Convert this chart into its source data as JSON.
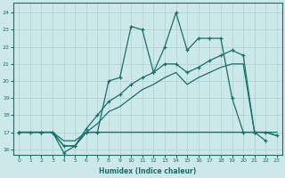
{
  "xlabel": "Humidex (Indice chaleur)",
  "bg_color": "#cce8e8",
  "grid_color": "#aad0d0",
  "line_color": "#1a6e6e",
  "xlim": [
    -0.5,
    23.5
  ],
  "ylim": [
    15.7,
    24.6
  ],
  "xticks": [
    0,
    1,
    2,
    3,
    4,
    5,
    6,
    7,
    8,
    9,
    10,
    11,
    12,
    13,
    14,
    15,
    16,
    17,
    18,
    19,
    20,
    21,
    22,
    23
  ],
  "yticks": [
    16,
    17,
    18,
    19,
    20,
    21,
    22,
    23,
    24
  ],
  "line1_x": [
    0,
    2,
    3,
    4,
    5,
    6,
    7,
    8,
    9,
    10,
    11,
    12,
    13,
    14,
    15,
    16,
    17,
    18,
    19,
    20,
    21,
    22
  ],
  "line1_y": [
    17,
    17,
    17,
    15.8,
    16.2,
    17,
    17,
    20,
    20.2,
    23.2,
    23.0,
    20.5,
    22,
    24,
    21.8,
    22.5,
    22.5,
    22.5,
    19,
    17,
    17,
    16.5
  ],
  "line2_x": [
    0,
    1,
    2,
    3,
    4,
    5,
    6,
    7,
    8,
    9,
    10,
    11,
    12,
    13,
    14,
    15,
    16,
    17,
    18,
    19,
    20,
    21,
    22,
    23
  ],
  "line2_y": [
    17,
    17,
    17,
    17,
    16.2,
    16.2,
    17.2,
    18.0,
    18.8,
    19.2,
    19.8,
    20.2,
    20.5,
    21.0,
    21.0,
    20.5,
    20.8,
    21.2,
    21.5,
    21.8,
    21.5,
    17.0,
    17.0,
    16.8
  ],
  "line3_x": [
    0,
    1,
    2,
    3,
    4,
    5,
    6,
    7,
    8,
    9,
    10,
    11,
    12,
    13,
    14,
    15,
    16,
    17,
    18,
    19,
    20,
    21,
    22,
    23
  ],
  "line3_y": [
    17,
    17,
    17,
    17,
    16.2,
    16.2,
    17.0,
    17.5,
    18.2,
    18.5,
    19.0,
    19.5,
    19.8,
    20.2,
    20.5,
    19.8,
    20.2,
    20.5,
    20.8,
    21.0,
    21.0,
    17.0,
    17.0,
    16.8
  ],
  "line4_x": [
    0,
    1,
    2,
    3,
    4,
    5,
    6,
    7,
    8,
    9,
    10,
    11,
    12,
    13,
    14,
    15,
    16,
    17,
    18,
    19,
    20,
    21,
    22,
    23
  ],
  "line4_y": [
    17,
    17,
    17,
    17,
    16.5,
    16.5,
    17.0,
    17.0,
    17.0,
    17.0,
    17.0,
    17.0,
    17.0,
    17.0,
    17.0,
    17.0,
    17.0,
    17.0,
    17.0,
    17.0,
    17.0,
    17.0,
    17.0,
    17.0
  ]
}
